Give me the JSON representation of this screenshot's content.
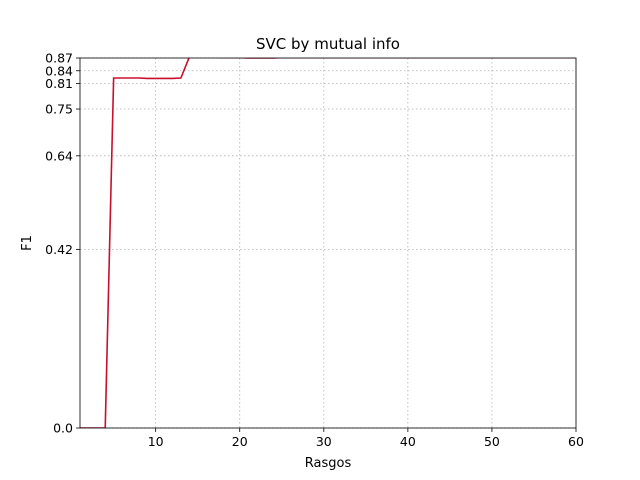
{
  "chart_data": {
    "type": "line",
    "title": "SVC by mutual info",
    "xlabel": "Rasgos",
    "ylabel": "F1",
    "xlim": [
      1,
      60
    ],
    "ylim": [
      0,
      0.87
    ],
    "xticks": [
      10,
      20,
      30,
      40,
      50,
      60
    ],
    "yticks": [
      0.0,
      0.42,
      0.64,
      0.75,
      0.81,
      0.84,
      0.87
    ],
    "ytick_labels": [
      "0.0",
      "0.42",
      "0.64",
      "0.75",
      "0.81",
      "0.84",
      "0.87"
    ],
    "grid": true,
    "color": "#c8102e",
    "series": [
      {
        "x": [
          1,
          2,
          3,
          4,
          5,
          6,
          7,
          8,
          9,
          10,
          11,
          12,
          13,
          14,
          15,
          16,
          17,
          18,
          19,
          20,
          21,
          22,
          23,
          24,
          25,
          26,
          27,
          28,
          29,
          30,
          31,
          32,
          33,
          34,
          35,
          36,
          37,
          38,
          39,
          40,
          41,
          42,
          43,
          44,
          45,
          46,
          47,
          48,
          49,
          50,
          51,
          52,
          53,
          54,
          55,
          56,
          57,
          58,
          59,
          60
        ],
        "y": [
          0.0,
          0.0,
          0.0,
          0.0,
          0.823,
          0.823,
          0.823,
          0.823,
          0.822,
          0.822,
          0.822,
          0.822,
          0.823,
          0.872,
          0.872,
          0.872,
          0.872,
          0.871,
          0.871,
          0.871,
          0.87,
          0.87,
          0.87,
          0.87,
          0.871,
          0.871,
          0.871,
          0.871,
          0.871,
          0.871,
          0.871,
          0.871,
          0.871,
          0.871,
          0.871,
          0.871,
          0.871,
          0.871,
          0.871,
          0.871,
          0.871,
          0.871,
          0.871,
          0.871,
          0.871,
          0.871,
          0.871,
          0.871,
          0.871,
          0.871,
          0.871,
          0.871,
          0.871,
          0.871,
          0.871,
          0.871,
          0.871,
          0.871,
          0.871,
          0.871
        ]
      }
    ]
  }
}
